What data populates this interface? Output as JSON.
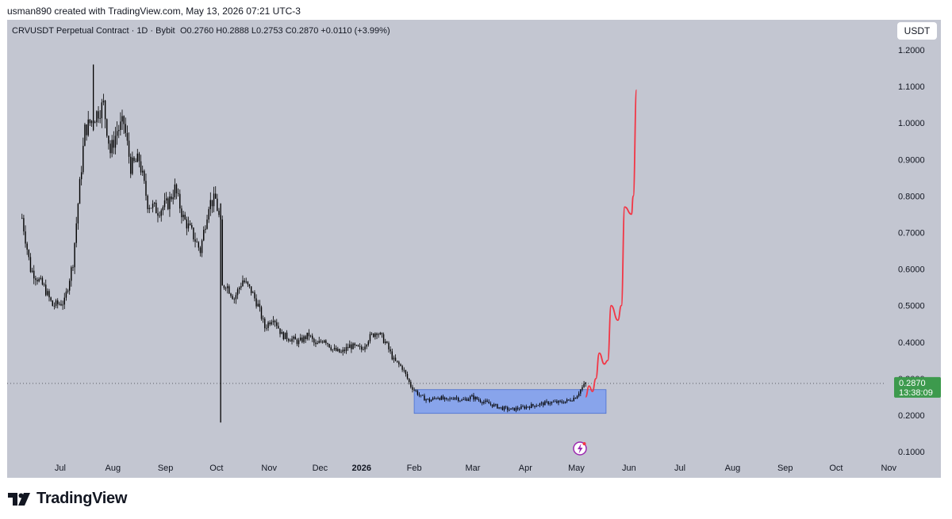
{
  "credit": "usman890 created with TradingView.com, May 13, 2026 07:21 UTC-3",
  "brand": "TradingView",
  "unit_button": "USDT",
  "colors": {
    "background": "#c3c6d1",
    "candles": "#000000",
    "range_box": "#7e9ef0",
    "projection": "#f23645",
    "price_badge": "#3d9a4d"
  },
  "chart_data": {
    "type": "candlestick",
    "title": "CRVUSDT Perpetual Contract · 1D · Bybit",
    "ohlc_header": {
      "open": "O0.2760",
      "high": "H0.2888",
      "low": "L0.2753",
      "close": "C0.2870",
      "change": "+0.0110 (+3.99%)"
    },
    "x_ticks": [
      "Jul",
      "Aug",
      "Sep",
      "Oct",
      "Nov",
      "Dec",
      "2026",
      "Feb",
      "Mar",
      "Apr",
      "May",
      "Jun",
      "Jul",
      "Aug",
      "Sep",
      "Oct",
      "Nov"
    ],
    "y_ticks": [
      "1.2000",
      "1.1000",
      "1.0000",
      "0.9000",
      "0.8000",
      "0.7000",
      "0.6000",
      "0.5000",
      "0.4000",
      "0.3000",
      "0.2000",
      "0.1000"
    ],
    "ylim": [
      0.05,
      1.25
    ],
    "last_price": "0.2870",
    "countdown": "13:38:09",
    "price_path": [
      [
        "2025-06-15",
        0.74
      ],
      [
        "2025-06-20",
        0.6
      ],
      [
        "2025-06-28",
        0.55
      ],
      [
        "2025-07-03",
        0.5
      ],
      [
        "2025-07-10",
        0.51
      ],
      [
        "2025-07-15",
        0.62
      ],
      [
        "2025-07-18",
        0.78
      ],
      [
        "2025-07-22",
        0.98
      ],
      [
        "2025-07-28",
        1.02
      ],
      [
        "2025-08-02",
        1.05
      ],
      [
        "2025-08-06",
        0.92
      ],
      [
        "2025-08-10",
        0.98
      ],
      [
        "2025-08-14",
        1.0
      ],
      [
        "2025-08-18",
        0.88
      ],
      [
        "2025-08-23",
        0.9
      ],
      [
        "2025-08-28",
        0.78
      ],
      [
        "2025-09-03",
        0.76
      ],
      [
        "2025-09-09",
        0.78
      ],
      [
        "2025-09-13",
        0.82
      ],
      [
        "2025-09-18",
        0.74
      ],
      [
        "2025-09-23",
        0.7
      ],
      [
        "2025-09-28",
        0.65
      ],
      [
        "2025-10-03",
        0.78
      ],
      [
        "2025-10-07",
        0.79
      ],
      [
        "2025-10-10",
        0.72
      ],
      [
        "2025-10-11",
        0.55
      ],
      [
        "2025-10-13",
        0.56
      ],
      [
        "2025-10-18",
        0.52
      ],
      [
        "2025-10-23",
        0.57
      ],
      [
        "2025-10-28",
        0.54
      ],
      [
        "2025-11-01",
        0.5
      ],
      [
        "2025-11-05",
        0.44
      ],
      [
        "2025-11-10",
        0.47
      ],
      [
        "2025-11-15",
        0.42
      ],
      [
        "2025-11-20",
        0.41
      ],
      [
        "2025-11-25",
        0.4
      ],
      [
        "2025-12-01",
        0.42
      ],
      [
        "2025-12-05",
        0.39
      ],
      [
        "2025-12-10",
        0.41
      ],
      [
        "2025-12-15",
        0.38
      ],
      [
        "2025-12-20",
        0.37
      ],
      [
        "2025-12-25",
        0.39
      ],
      [
        "2026-01-01",
        0.38
      ],
      [
        "2026-01-05",
        0.41
      ],
      [
        "2026-01-10",
        0.43
      ],
      [
        "2026-01-15",
        0.4
      ],
      [
        "2026-01-20",
        0.35
      ],
      [
        "2026-01-25",
        0.33
      ],
      [
        "2026-01-30",
        0.28
      ],
      [
        "2026-02-05",
        0.25
      ],
      [
        "2026-02-10",
        0.24
      ],
      [
        "2026-02-15",
        0.25
      ],
      [
        "2026-02-20",
        0.24
      ],
      [
        "2026-02-25",
        0.25
      ],
      [
        "2026-03-01",
        0.24
      ],
      [
        "2026-03-07",
        0.25
      ],
      [
        "2026-03-12",
        0.24
      ],
      [
        "2026-03-18",
        0.23
      ],
      [
        "2026-03-24",
        0.22
      ],
      [
        "2026-03-30",
        0.215
      ],
      [
        "2026-04-05",
        0.22
      ],
      [
        "2026-04-10",
        0.225
      ],
      [
        "2026-04-16",
        0.23
      ],
      [
        "2026-04-22",
        0.235
      ],
      [
        "2026-04-28",
        0.235
      ],
      [
        "2026-05-03",
        0.24
      ],
      [
        "2026-05-07",
        0.25
      ],
      [
        "2026-05-10",
        0.27
      ],
      [
        "2026-05-13",
        0.287
      ]
    ],
    "spikes": [
      {
        "date": "2025-07-27",
        "high": 1.16,
        "low": 0.98
      },
      {
        "date": "2025-10-10",
        "high": 0.78,
        "low": 0.18
      }
    ],
    "range_box": {
      "start": "2026-02-01",
      "end": "2026-05-25",
      "top": 0.27,
      "bottom": 0.205
    },
    "projection": [
      [
        "2026-05-13",
        0.25
      ],
      [
        "2026-05-15",
        0.28
      ],
      [
        "2026-05-17",
        0.265
      ],
      [
        "2026-05-19",
        0.3
      ],
      [
        "2026-05-21",
        0.37
      ],
      [
        "2026-05-24",
        0.34
      ],
      [
        "2026-05-26",
        0.35
      ],
      [
        "2026-05-28",
        0.5
      ],
      [
        "2026-06-01",
        0.46
      ],
      [
        "2026-06-03",
        0.5
      ],
      [
        "2026-06-05",
        0.77
      ],
      [
        "2026-06-09",
        0.75
      ],
      [
        "2026-06-10",
        0.8
      ],
      [
        "2026-06-12",
        1.09
      ]
    ]
  }
}
